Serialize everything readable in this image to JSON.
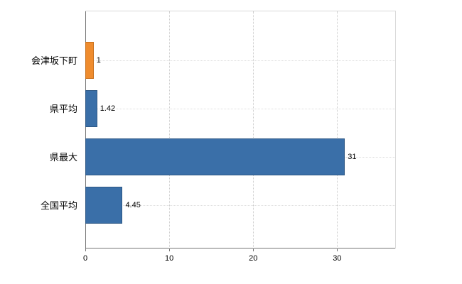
{
  "chart_data": {
    "type": "bar",
    "orientation": "horizontal",
    "title": "",
    "xlabel": "",
    "ylabel": "",
    "categories": [
      "会津坂下町",
      "県平均",
      "県最大",
      "全国平均"
    ],
    "values": [
      1,
      1.42,
      31,
      4.45
    ],
    "value_labels": [
      "1",
      "1.42",
      "31",
      "4.45"
    ],
    "bar_colors": [
      "#ef8c2e",
      "#3a6fa8",
      "#3a6fa8",
      "#3a6fa8"
    ],
    "bar_border_colors": [
      "#c9701c",
      "#2d5784",
      "#2d5784",
      "#2d5784"
    ],
    "xlim": [
      0,
      37
    ],
    "x_ticks": [
      0,
      10,
      20,
      30
    ],
    "grid": true,
    "legend": false
  },
  "colors": {
    "accent_orange": "#ef8c2e",
    "accent_blue": "#3a6fa8",
    "gridline": "#cccccc",
    "axis": "#767676",
    "plot_border": "#d9d9d9",
    "text": "#000000",
    "background": "#ffffff"
  }
}
